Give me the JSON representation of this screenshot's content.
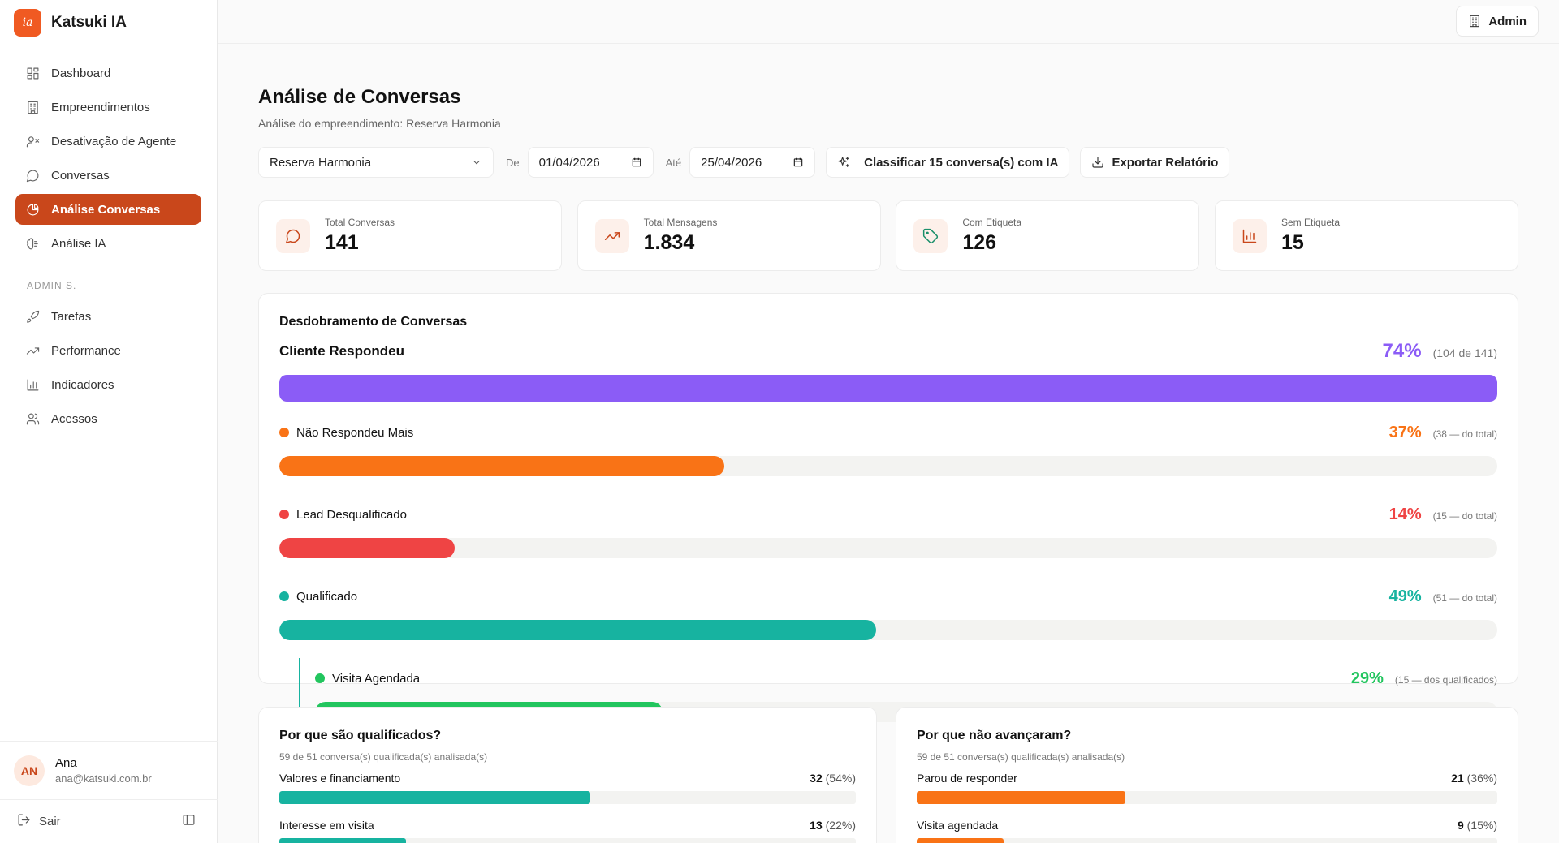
{
  "brand": {
    "name": "Katsuki IA",
    "logo_text": "ia"
  },
  "sidebar": {
    "items": [
      {
        "label": "Dashboard",
        "icon": "dashboard-icon",
        "active": false
      },
      {
        "label": "Empreendimentos",
        "icon": "building-icon",
        "active": false
      },
      {
        "label": "Desativação de Agente",
        "icon": "user-x-icon",
        "active": false
      },
      {
        "label": "Conversas",
        "icon": "message-icon",
        "active": false
      },
      {
        "label": "Análise Conversas",
        "icon": "pie-chart-icon",
        "active": true
      },
      {
        "label": "Análise IA",
        "icon": "brain-icon",
        "active": false
      }
    ],
    "section_label": "ADMIN S.",
    "admin_items": [
      {
        "label": "Tarefas",
        "icon": "rocket-icon"
      },
      {
        "label": "Performance",
        "icon": "trending-up-icon"
      },
      {
        "label": "Indicadores",
        "icon": "bar-chart-icon"
      },
      {
        "label": "Acessos",
        "icon": "users-icon"
      }
    ],
    "user": {
      "initials": "AN",
      "name": "Ana",
      "email": "ana@katsuki.com.br"
    },
    "logout_label": "Sair"
  },
  "topbar": {
    "admin_label": "Admin"
  },
  "page": {
    "title": "Análise de Conversas",
    "subtitle": "Análise do empreendimento: Reserva Harmonia"
  },
  "filters": {
    "project": "Reserva Harmonia",
    "from_label": "De",
    "from_date": "01/04/2026",
    "to_label": "Até",
    "to_date": "25/04/2026",
    "classify_label": "Classificar 15 conversa(s) com IA",
    "export_label": "Exportar Relatório"
  },
  "stats": [
    {
      "label": "Total Conversas",
      "value": "141",
      "icon": "message-icon",
      "color": "#c9471b"
    },
    {
      "label": "Total Mensagens",
      "value": "1.834",
      "icon": "trending-up-icon",
      "color": "#c9471b"
    },
    {
      "label": "Com Etiqueta",
      "value": "126",
      "icon": "tag-icon",
      "color": "#1a8f6a"
    },
    {
      "label": "Sem Etiqueta",
      "value": "15",
      "icon": "bar-chart-icon",
      "color": "#c9471b"
    }
  ],
  "breakdown": {
    "title": "Desdobramento de Conversas",
    "main": {
      "label": "Cliente Respondeu",
      "pct": "74%",
      "note": "(104 de 141)",
      "fraction": 1.0,
      "color": "#8b5cf6"
    },
    "rows": [
      {
        "label": "Não Respondeu Mais",
        "pct": "37%",
        "note": "(38 — do total)",
        "fraction": 0.365,
        "color": "#f97316"
      },
      {
        "label": "Lead Desqualificado",
        "pct": "14%",
        "note": "(15 — do total)",
        "fraction": 0.144,
        "color": "#ef4444"
      },
      {
        "label": "Qualificado",
        "pct": "49%",
        "note": "(51 — do total)",
        "fraction": 0.49,
        "color": "#17b3a0"
      }
    ],
    "sub": {
      "label": "Visita Agendada",
      "pct": "29%",
      "note": "(15 — dos qualificados)",
      "fraction": 0.294,
      "color": "#22c55e"
    }
  },
  "qualified": {
    "title": "Por que são qualificados?",
    "subtitle": "59 de 51 conversa(s) qualificada(s) analisada(s)",
    "color": "#17b3a0",
    "items": [
      {
        "label": "Valores e financiamento",
        "count": "32",
        "pct": "(54%)",
        "fraction": 0.54
      },
      {
        "label": "Interesse em visita",
        "count": "13",
        "pct": "(22%)",
        "fraction": 0.22
      }
    ]
  },
  "not_advanced": {
    "title": "Por que não avançaram?",
    "subtitle": "59 de 51 conversa(s) qualificada(s) analisada(s)",
    "color": "#f97316",
    "items": [
      {
        "label": "Parou de responder",
        "count": "21",
        "pct": "(36%)",
        "fraction": 0.36
      },
      {
        "label": "Visita agendada",
        "count": "9",
        "pct": "(15%)",
        "fraction": 0.15
      }
    ]
  }
}
